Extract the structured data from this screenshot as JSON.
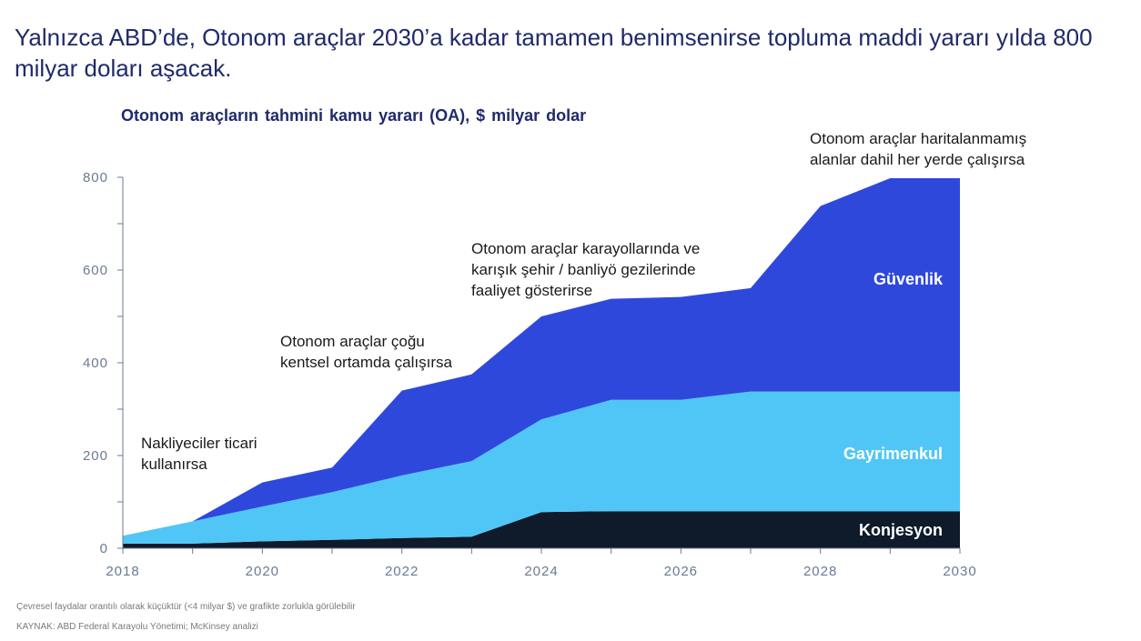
{
  "headline": "Yalnızca ABD’de, Otonom araçlar 2030’a kadar tamamen benimsenirse topluma maddi yararı yılda 800 milyar doları aşacak.",
  "colors": {
    "konjesyon": "#0f1a2a",
    "gayrimenkul": "#50c6f7",
    "guvenlik": "#2f48dc",
    "axis": "#6b7a94",
    "grid": "#d9dee6"
  },
  "chart_data": {
    "type": "area",
    "stacked": true,
    "title": "Otonom araçların tahmini kamu yararı (OA), $ milyar dolar",
    "xlabel": "",
    "ylabel": "",
    "x": [
      2018,
      2019,
      2020,
      2021,
      2022,
      2023,
      2024,
      2025,
      2026,
      2027,
      2028,
      2029,
      2030
    ],
    "xticks": [
      "2018",
      "2020",
      "2022",
      "2024",
      "2026",
      "2028",
      "2030"
    ],
    "yticks": [
      "0",
      "200",
      "400",
      "600",
      "800"
    ],
    "xlim": [
      2018,
      2030
    ],
    "ylim": [
      0,
      800
    ],
    "series": [
      {
        "name": "Konjesyon",
        "values": [
          10,
          10,
          15,
          18,
          22,
          25,
          78,
          80,
          80,
          80,
          80,
          80,
          80
        ]
      },
      {
        "name": "Gayrimenkul",
        "values": [
          17,
          48,
          75,
          103,
          135,
          163,
          200,
          240,
          240,
          258,
          258,
          258,
          258
        ]
      },
      {
        "name": "Güvenlik",
        "values": [
          0,
          0,
          52,
          53,
          183,
          187,
          222,
          218,
          222,
          223,
          400,
          460,
          460
        ]
      }
    ],
    "annotations": [
      {
        "text_lines": [
          "Nakliyeciler ticari",
          "kullanırsa"
        ]
      },
      {
        "text_lines": [
          "Otonom araçlar çoğu",
          "kentsel ortamda çalışırsa"
        ]
      },
      {
        "text_lines": [
          "Otonom araçlar karayollarında ve",
          "karışık şehir / banliyö gezilerinde",
          "faaliyet gösterirse"
        ]
      },
      {
        "text_lines": [
          "Otonom araçlar haritalanmamış",
          "alanlar dahil her yerde çalışırsa"
        ]
      }
    ]
  },
  "footnotes": {
    "note": "Çevresel faydalar orantılı olarak küçüktür (<4 milyar $) ve grafikte zorlukla görülebilir",
    "source": "KAYNAK: ABD Federal Karayolu Yönetimi; McKinsey analizi"
  }
}
